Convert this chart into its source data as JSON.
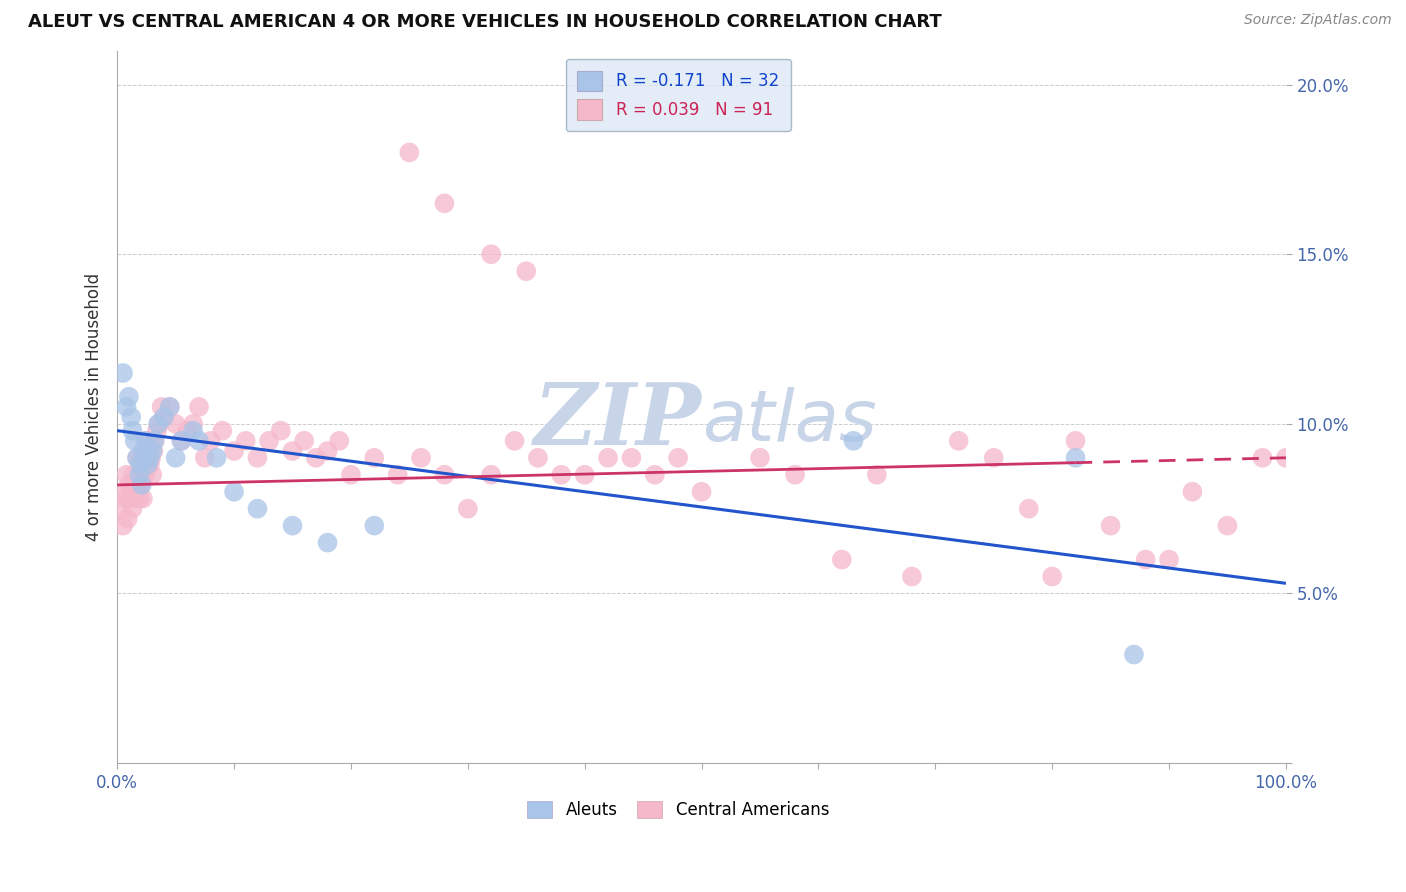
{
  "title": "ALEUT VS CENTRAL AMERICAN 4 OR MORE VEHICLES IN HOUSEHOLD CORRELATION CHART",
  "source": "Source: ZipAtlas.com",
  "ylabel": "4 or more Vehicles in Household",
  "xlim": [
    0,
    100
  ],
  "ylim": [
    0,
    21
  ],
  "x_ticks": [
    0,
    10,
    20,
    30,
    40,
    50,
    60,
    70,
    80,
    90,
    100
  ],
  "y_ticks": [
    0,
    5,
    10,
    15,
    20
  ],
  "x_tick_labels": [
    "0.0%",
    "",
    "",
    "",
    "",
    "",
    "",
    "",
    "",
    "",
    "100.0%"
  ],
  "y_tick_labels": [
    "",
    "5.0%",
    "10.0%",
    "15.0%",
    "20.0%"
  ],
  "aleut_R": -0.171,
  "aleut_N": 32,
  "central_R": 0.039,
  "central_N": 91,
  "aleut_color": "#a8c4e8",
  "central_color": "#f5b8cb",
  "aleut_line_color": "#2255cc",
  "central_line_color": "#cc3366",
  "watermark_color": "#c8d4e8",
  "legend_box_color": "#dde8f5",
  "legend_edge_color": "#99aabb",
  "aleut_x": [
    0.5,
    0.8,
    1.0,
    1.2,
    1.3,
    1.5,
    1.7,
    1.9,
    2.0,
    2.1,
    2.2,
    2.4,
    2.6,
    2.8,
    3.0,
    3.2,
    3.5,
    4.0,
    4.5,
    5.0,
    5.5,
    6.5,
    7.0,
    8.5,
    10.0,
    12.0,
    15.0,
    18.0,
    22.0,
    63.0,
    82.0,
    87.0
  ],
  "aleut_y": [
    11.5,
    10.5,
    10.8,
    10.2,
    9.8,
    9.5,
    9.0,
    8.5,
    8.8,
    8.2,
    9.2,
    9.5,
    8.8,
    9.0,
    9.2,
    9.5,
    10.0,
    10.2,
    10.5,
    9.0,
    9.5,
    9.8,
    9.5,
    9.0,
    8.0,
    7.5,
    7.0,
    6.5,
    7.0,
    9.5,
    9.0,
    3.2
  ],
  "central_x": [
    0.3,
    0.5,
    0.6,
    0.7,
    0.8,
    0.9,
    1.0,
    1.1,
    1.2,
    1.3,
    1.4,
    1.5,
    1.6,
    1.7,
    1.8,
    1.9,
    2.0,
    2.0,
    2.1,
    2.1,
    2.2,
    2.3,
    2.4,
    2.5,
    2.6,
    2.7,
    2.8,
    2.9,
    3.0,
    3.1,
    3.2,
    3.4,
    3.6,
    3.8,
    4.0,
    4.5,
    5.0,
    5.5,
    6.0,
    6.5,
    7.0,
    7.5,
    8.0,
    9.0,
    10.0,
    11.0,
    12.0,
    13.0,
    14.0,
    15.0,
    16.0,
    17.0,
    18.0,
    19.0,
    20.0,
    22.0,
    24.0,
    26.0,
    28.0,
    30.0,
    32.0,
    34.0,
    36.0,
    38.0,
    40.0,
    42.0,
    44.0,
    46.0,
    48.0,
    50.0,
    55.0,
    58.0,
    62.0,
    65.0,
    68.0,
    72.0,
    75.0,
    78.0,
    80.0,
    82.0,
    85.0,
    88.0,
    90.0,
    92.0,
    95.0,
    98.0,
    100.0,
    25.0,
    28.0,
    32.0,
    35.0
  ],
  "central_y": [
    7.5,
    7.0,
    8.0,
    7.8,
    8.5,
    7.2,
    8.2,
    7.8,
    8.0,
    7.5,
    8.5,
    8.0,
    7.8,
    9.0,
    8.2,
    7.8,
    8.5,
    8.2,
    9.0,
    8.5,
    7.8,
    8.8,
    8.5,
    9.2,
    9.5,
    9.0,
    8.8,
    9.0,
    8.5,
    9.2,
    9.5,
    9.8,
    10.0,
    10.5,
    10.2,
    10.5,
    10.0,
    9.5,
    9.8,
    10.0,
    10.5,
    9.0,
    9.5,
    9.8,
    9.2,
    9.5,
    9.0,
    9.5,
    9.8,
    9.2,
    9.5,
    9.0,
    9.2,
    9.5,
    8.5,
    9.0,
    8.5,
    9.0,
    8.5,
    7.5,
    8.5,
    9.5,
    9.0,
    8.5,
    8.5,
    9.0,
    9.0,
    8.5,
    9.0,
    8.0,
    9.0,
    8.5,
    6.0,
    8.5,
    5.5,
    9.5,
    9.0,
    7.5,
    5.5,
    9.5,
    7.0,
    6.0,
    6.0,
    8.0,
    7.0,
    9.0,
    9.0,
    18.0,
    16.5,
    15.0,
    14.5
  ],
  "aleut_line_start_x": 0,
  "aleut_line_start_y": 9.8,
  "aleut_line_end_x": 100,
  "aleut_line_end_y": 5.3,
  "central_line_solid_end_x": 82,
  "central_line_start_y": 8.2,
  "central_line_end_y": 9.0
}
